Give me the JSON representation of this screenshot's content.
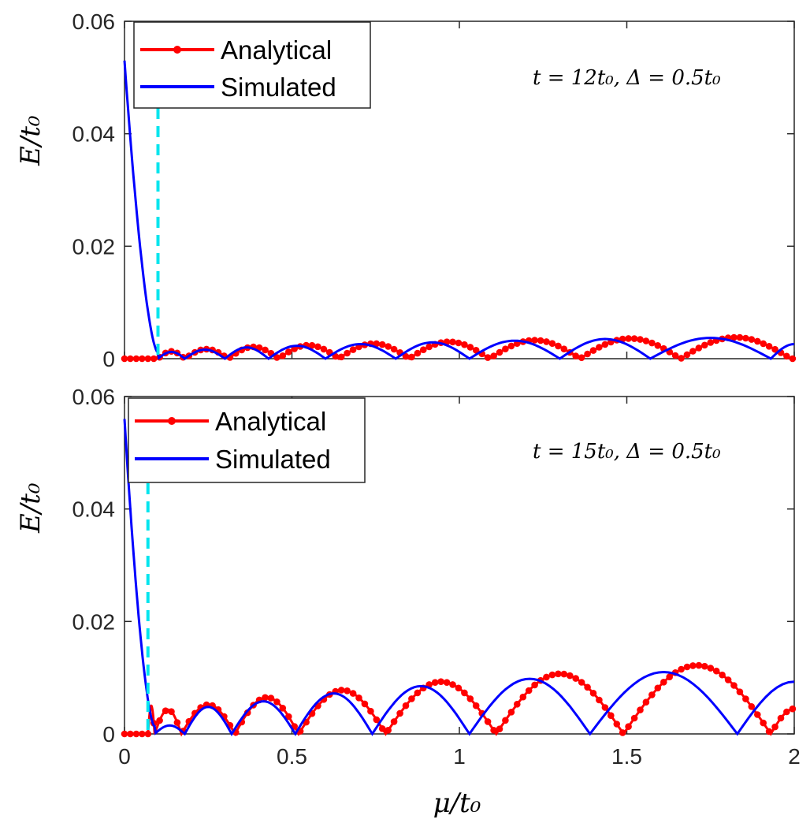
{
  "chart_data": [
    {
      "type": "line",
      "title": "",
      "xlabel": "",
      "ylabel": "E/t0",
      "xlim": [
        0,
        2
      ],
      "ylim": [
        0,
        0.06
      ],
      "xticks": [],
      "yticks": [
        "0",
        "0.02",
        "0.04",
        "0.06"
      ],
      "annotation": "t = 12t0, Δ = 0.5t0",
      "legend": [
        "Analytical",
        "Simulated"
      ],
      "legend_position": "top-left",
      "colors": {
        "analytical": "#ff0000",
        "simulated": "#0000ff",
        "threshold": "#00e5ee"
      },
      "threshold_mu": 0.1,
      "series": [
        {
          "name": "Analytical",
          "style": "line+markers",
          "zeros": [
            0.1,
            0.18,
            0.31,
            0.46,
            0.64,
            0.85,
            1.09,
            1.36,
            1.66,
            1.99
          ],
          "peaks": [
            0.0013,
            0.0017,
            0.0021,
            0.0024,
            0.0027,
            0.003,
            0.0033,
            0.0036,
            0.0038
          ]
        },
        {
          "name": "Simulated",
          "style": "line",
          "start": 0.053,
          "zeros": [
            0.1,
            0.18,
            0.3,
            0.43,
            0.6,
            0.81,
            1.03,
            1.3,
            1.57,
            1.93
          ],
          "peaks": [
            0.0012,
            0.0016,
            0.002,
            0.0023,
            0.0026,
            0.0029,
            0.0032,
            0.0035,
            0.0037
          ],
          "tail": 0.0026
        }
      ]
    },
    {
      "type": "line",
      "title": "",
      "xlabel": "μ/t0",
      "ylabel": "E/t0",
      "xlim": [
        0,
        2
      ],
      "ylim": [
        0,
        0.06
      ],
      "xticks": [
        "0",
        "0.5",
        "1",
        "1.5",
        "2"
      ],
      "yticks": [
        "0",
        "0.02",
        "0.04",
        "0.06"
      ],
      "annotation": "t = 15t0, Δ = 0.5t0",
      "legend": [
        "Analytical",
        "Simulated"
      ],
      "legend_position": "top-left",
      "colors": {
        "analytical": "#ff0000",
        "simulated": "#0000ff",
        "threshold": "#00e5ee"
      },
      "threshold_mu": 0.07,
      "series": [
        {
          "name": "Analytical",
          "style": "line+markers",
          "zeros": [
            0.07,
            0.09,
            0.17,
            0.33,
            0.52,
            0.78,
            1.11,
            1.49,
            1.93
          ],
          "peaks": [
            0.005,
            0.0043,
            0.0052,
            0.0065,
            0.0078,
            0.0093,
            0.0107,
            0.0122
          ],
          "tail": 0.0045
        },
        {
          "name": "Simulated",
          "style": "line",
          "start": 0.056,
          "zeros": [
            0.09,
            0.18,
            0.32,
            0.51,
            0.74,
            1.03,
            1.39,
            1.83
          ],
          "peaks": [
            0.0015,
            0.0048,
            0.0058,
            0.0072,
            0.0085,
            0.0098,
            0.011
          ],
          "tail": 0.0093
        }
      ]
    }
  ]
}
